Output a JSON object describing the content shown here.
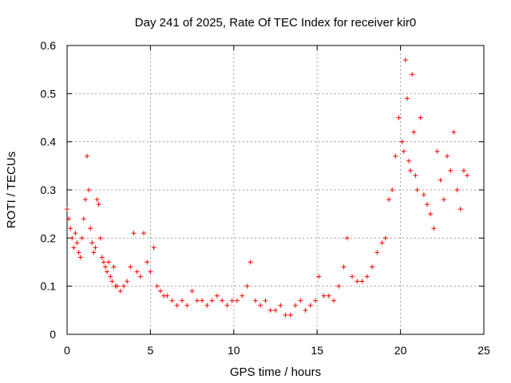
{
  "chart_data": {
    "type": "scatter",
    "title": "Day 241 of 2025, Rate Of TEC Index for receiver kir0",
    "xlabel": "GPS time / hours",
    "ylabel": "ROTI / TECUs",
    "xlim": [
      0,
      25
    ],
    "ylim": [
      0,
      0.6
    ],
    "x_ticks": [
      "0",
      "5",
      "10",
      "15",
      "20",
      "25"
    ],
    "y_ticks": [
      "0",
      "0.1",
      "0.2",
      "0.3",
      "0.4",
      "0.5",
      "0.6"
    ],
    "grid": true,
    "legend": "none",
    "marker": "+",
    "color": "#ff0000",
    "series": [
      {
        "x": [
          0.0,
          0.1,
          0.2,
          0.3,
          0.4,
          0.5,
          0.6,
          0.7,
          0.8,
          0.9,
          1.0,
          1.1,
          1.2,
          1.3,
          1.4,
          1.5,
          1.6,
          1.7,
          1.8,
          1.9,
          2.0,
          2.1,
          2.2,
          2.3,
          2.4,
          2.5,
          2.6,
          2.7,
          2.8,
          2.9,
          3.0,
          3.2,
          3.4,
          3.6,
          3.8,
          4.0,
          4.2,
          4.4,
          4.6,
          4.8,
          5.0,
          5.2,
          5.4,
          5.6,
          5.8,
          6.0,
          6.3,
          6.6,
          6.9,
          7.2,
          7.5,
          7.8,
          8.1,
          8.4,
          8.7,
          9.0,
          9.3,
          9.6,
          9.9,
          10.2,
          10.5,
          10.8,
          11.0,
          11.3,
          11.6,
          11.9,
          12.2,
          12.5,
          12.8,
          13.1,
          13.4,
          13.7,
          14.0,
          14.3,
          14.6,
          14.9,
          15.1,
          15.4,
          15.7,
          16.0,
          16.3,
          16.6,
          16.8,
          17.1,
          17.4,
          17.7,
          18.0,
          18.3,
          18.6,
          18.9,
          19.1,
          19.3,
          19.5,
          19.7,
          19.9,
          20.1,
          20.2,
          20.3,
          20.4,
          20.5,
          20.6,
          20.7,
          20.8,
          20.9,
          21.0,
          21.2,
          21.4,
          21.6,
          21.8,
          22.0,
          22.2,
          22.4,
          22.6,
          22.8,
          23.0,
          23.2,
          23.4,
          23.6,
          23.8,
          24.0
        ],
        "y": [
          0.26,
          0.24,
          0.22,
          0.2,
          0.18,
          0.21,
          0.19,
          0.17,
          0.16,
          0.2,
          0.24,
          0.28,
          0.37,
          0.3,
          0.22,
          0.19,
          0.17,
          0.18,
          0.28,
          0.27,
          0.2,
          0.16,
          0.15,
          0.14,
          0.13,
          0.15,
          0.12,
          0.11,
          0.14,
          0.1,
          0.1,
          0.09,
          0.1,
          0.11,
          0.14,
          0.21,
          0.13,
          0.12,
          0.21,
          0.15,
          0.13,
          0.18,
          0.1,
          0.09,
          0.08,
          0.08,
          0.07,
          0.06,
          0.07,
          0.06,
          0.09,
          0.07,
          0.07,
          0.06,
          0.07,
          0.08,
          0.07,
          0.06,
          0.07,
          0.07,
          0.08,
          0.1,
          0.15,
          0.07,
          0.06,
          0.07,
          0.05,
          0.05,
          0.06,
          0.04,
          0.04,
          0.06,
          0.07,
          0.05,
          0.06,
          0.07,
          0.12,
          0.08,
          0.08,
          0.07,
          0.1,
          0.14,
          0.2,
          0.12,
          0.11,
          0.11,
          0.12,
          0.14,
          0.17,
          0.19,
          0.2,
          0.28,
          0.3,
          0.37,
          0.45,
          0.4,
          0.38,
          0.57,
          0.49,
          0.36,
          0.34,
          0.54,
          0.42,
          0.33,
          0.3,
          0.45,
          0.29,
          0.27,
          0.25,
          0.22,
          0.38,
          0.32,
          0.28,
          0.37,
          0.34,
          0.42,
          0.3,
          0.26,
          0.34,
          0.33
        ]
      }
    ]
  }
}
